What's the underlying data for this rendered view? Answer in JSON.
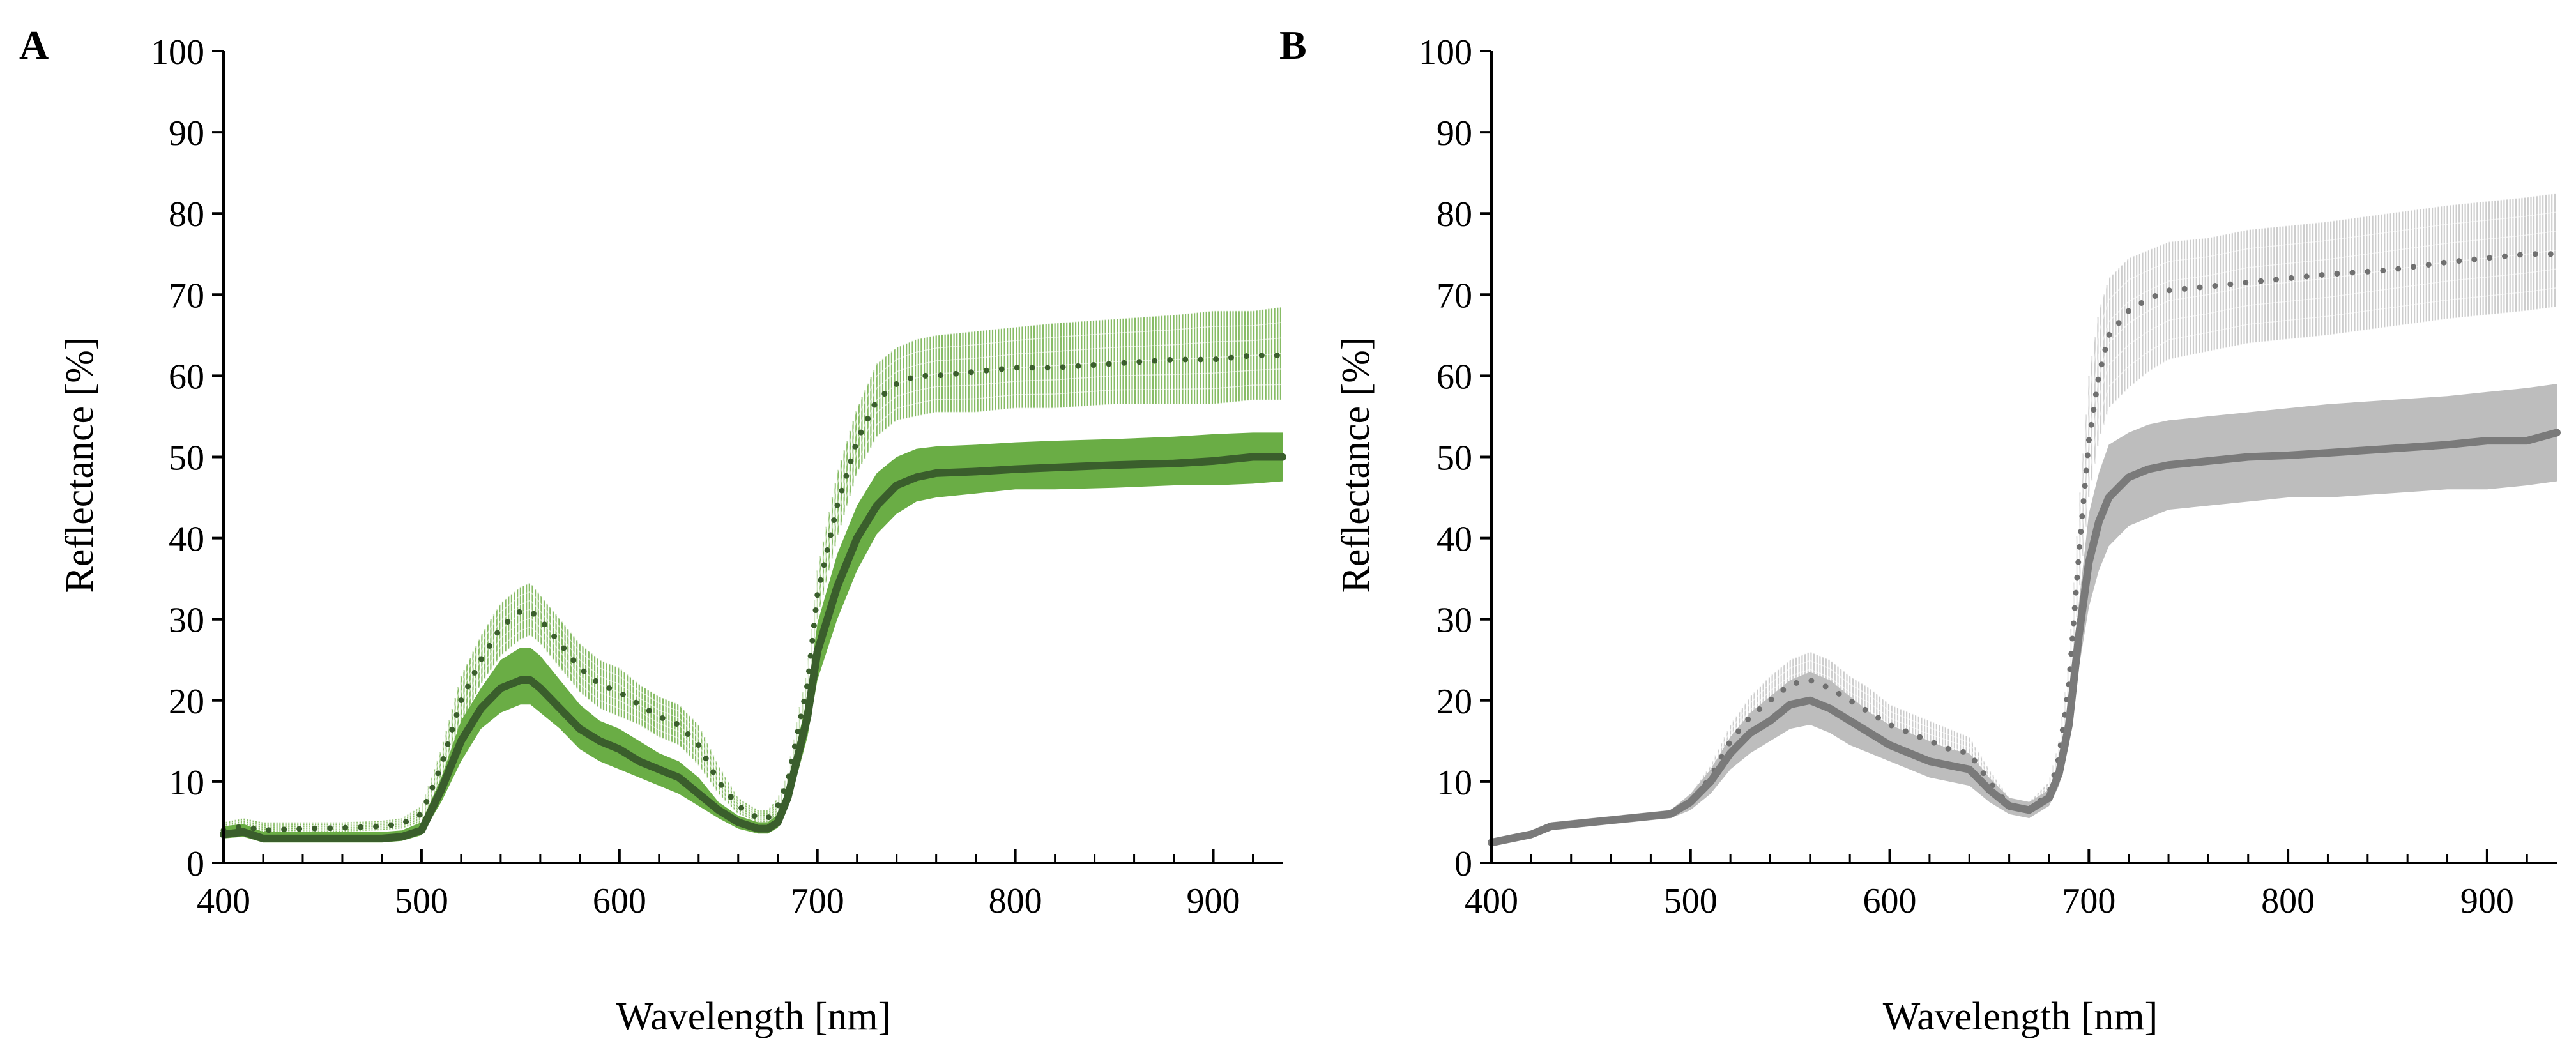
{
  "chart_data": [
    {
      "type": "line",
      "panel_label": "A",
      "xlabel": "Wavelength [nm]",
      "ylabel": "Reflectance [%]",
      "xlim": [
        400,
        935
      ],
      "ylim": [
        0,
        100
      ],
      "xticks": [
        400,
        500,
        600,
        700,
        800,
        900
      ],
      "yticks": [
        0,
        10,
        20,
        30,
        40,
        50,
        60,
        70,
        80,
        90,
        100
      ],
      "grid": false,
      "legend": "none",
      "series": [
        {
          "style": "dotted",
          "line_color": "#3a5e2c",
          "band_color": "#7ab554",
          "band_style": "fine-lines",
          "x": [
            400,
            410,
            420,
            440,
            460,
            480,
            490,
            500,
            510,
            520,
            530,
            540,
            550,
            555,
            560,
            570,
            580,
            590,
            600,
            610,
            620,
            630,
            640,
            650,
            660,
            670,
            675,
            680,
            685,
            690,
            695,
            700,
            710,
            720,
            730,
            740,
            750,
            760,
            780,
            800,
            820,
            850,
            880,
            900,
            920,
            935
          ],
          "mean": [
            4,
            4.5,
            4,
            4.2,
            4.3,
            4.5,
            4.8,
            6,
            12,
            20,
            25,
            29,
            31,
            31,
            30,
            27,
            24,
            22,
            21,
            19.5,
            18,
            17,
            14.5,
            10,
            7,
            5.5,
            5.5,
            7,
            10,
            16,
            22,
            33,
            44,
            52,
            57,
            59,
            60,
            60,
            60.5,
            61,
            61,
            61.5,
            62,
            62,
            62.5,
            62.5
          ],
          "lower": [
            3.5,
            3.8,
            3.5,
            3.7,
            3.8,
            4,
            4.2,
            5,
            10,
            17,
            22,
            25.5,
            27.5,
            28,
            27,
            24,
            21,
            19,
            18,
            17,
            15.5,
            14.5,
            12,
            8.5,
            6,
            5,
            5,
            6,
            9,
            14,
            20,
            30,
            40,
            48,
            52.5,
            54.5,
            55,
            55.5,
            55.5,
            56,
            56,
            56.5,
            56.5,
            56.5,
            57,
            57
          ],
          "upper": [
            5,
            5.5,
            5,
            5,
            5,
            5.2,
            5.5,
            7,
            14,
            23,
            28,
            32,
            34,
            34.5,
            33,
            30,
            27,
            25,
            24,
            22,
            20.5,
            19.5,
            17,
            12,
            8,
            6.5,
            6.5,
            8,
            11,
            18,
            24,
            36,
            48,
            56,
            61.5,
            63.5,
            64.5,
            65,
            65.5,
            66,
            66.5,
            67,
            67.5,
            68,
            68,
            68.5
          ]
        },
        {
          "style": "solid",
          "line_color": "#3a5e2c",
          "band_color": "#6aad45",
          "band_style": "filled",
          "x": [
            400,
            410,
            420,
            440,
            460,
            480,
            490,
            500,
            510,
            520,
            530,
            540,
            550,
            555,
            560,
            570,
            580,
            590,
            600,
            610,
            620,
            630,
            640,
            650,
            660,
            670,
            675,
            680,
            685,
            690,
            695,
            700,
            710,
            720,
            730,
            740,
            750,
            760,
            780,
            800,
            820,
            850,
            880,
            900,
            920,
            935
          ],
          "mean": [
            3.5,
            3.8,
            3,
            3,
            3,
            3,
            3.2,
            4,
            9,
            15,
            19,
            21.5,
            22.5,
            22.5,
            21.5,
            19,
            16.5,
            15,
            14,
            12.5,
            11.5,
            10.5,
            8.5,
            6.5,
            5,
            4.2,
            4.2,
            5,
            8,
            13,
            18,
            26,
            34,
            40,
            44,
            46.5,
            47.5,
            48,
            48.2,
            48.5,
            48.7,
            49,
            49.2,
            49.5,
            50,
            50
          ],
          "lower": [
            3,
            3.2,
            2.5,
            2.5,
            2.5,
            2.5,
            2.7,
            3.4,
            7.5,
            12.5,
            16.5,
            18.5,
            19.5,
            19.5,
            18.5,
            16.5,
            14,
            12.5,
            11.5,
            10.5,
            9.5,
            8.5,
            7,
            5.5,
            4.2,
            3.6,
            3.6,
            4.3,
            7,
            11,
            15.5,
            22.5,
            30,
            36,
            40.5,
            43,
            44.5,
            45,
            45.5,
            46,
            46,
            46.2,
            46.5,
            46.5,
            46.7,
            47
          ],
          "upper": [
            4.5,
            4.8,
            3.8,
            3.8,
            3.8,
            3.8,
            4,
            5,
            10.5,
            17.5,
            21.5,
            25,
            26.5,
            26.5,
            25.5,
            22.5,
            19.5,
            17.5,
            16.5,
            15,
            13.5,
            12.5,
            10.5,
            7.5,
            5.8,
            5,
            5,
            6,
            9.5,
            15,
            20.5,
            29.5,
            38,
            44,
            48,
            50,
            51,
            51.3,
            51.5,
            51.8,
            52,
            52.2,
            52.5,
            52.8,
            53,
            53
          ]
        }
      ]
    },
    {
      "type": "line",
      "panel_label": "B",
      "xlabel": "Wavelength [nm]",
      "ylabel": "Reflectance [%]",
      "xlim": [
        400,
        935
      ],
      "ylim": [
        0,
        100
      ],
      "xticks": [
        400,
        500,
        600,
        700,
        800,
        900
      ],
      "yticks": [
        0,
        10,
        20,
        30,
        40,
        50,
        60,
        70,
        80,
        90,
        100
      ],
      "grid": false,
      "legend": "none",
      "series": [
        {
          "style": "dotted",
          "line_color": "#707070",
          "band_color": "#c8c8c8",
          "band_style": "fine-lines",
          "x": [
            400,
            410,
            420,
            430,
            450,
            470,
            490,
            500,
            510,
            520,
            530,
            540,
            550,
            560,
            570,
            580,
            590,
            600,
            610,
            620,
            630,
            640,
            650,
            660,
            670,
            680,
            685,
            690,
            695,
            700,
            705,
            710,
            720,
            730,
            740,
            760,
            780,
            800,
            820,
            850,
            880,
            900,
            920,
            935
          ],
          "mean": [
            2.5,
            3,
            3.5,
            4.5,
            5,
            5.5,
            6,
            7.5,
            10.5,
            15,
            18,
            20,
            22,
            22.5,
            21.5,
            20,
            18.5,
            17,
            16,
            15,
            14,
            13.5,
            10,
            7,
            6.5,
            8.5,
            13,
            22,
            38,
            52,
            60,
            65,
            68,
            69.5,
            70.5,
            71,
            71.5,
            72,
            72.5,
            73,
            74,
            74.5,
            75,
            75
          ],
          "lower": [
            2,
            2.5,
            3,
            4,
            4.5,
            5,
            5.5,
            6.5,
            9,
            13,
            15.5,
            17.5,
            19,
            19.5,
            18.5,
            17,
            16,
            14.5,
            13.5,
            12.5,
            12,
            11.5,
            8.5,
            6,
            5.5,
            7.5,
            11.5,
            19.5,
            33,
            45,
            52,
            56,
            58.5,
            60.5,
            62,
            63,
            64,
            64.5,
            65,
            66,
            67,
            67.5,
            68,
            68.5
          ],
          "upper": [
            3,
            3.5,
            4,
            5,
            5.5,
            6,
            6.5,
            8.5,
            12,
            17,
            20.5,
            23,
            25,
            26,
            25,
            23,
            21.5,
            19.5,
            18.5,
            17.5,
            16.5,
            15.5,
            11.5,
            8,
            7.5,
            10,
            15,
            25,
            44,
            60,
            68,
            72,
            74.5,
            75.5,
            76.5,
            77,
            78,
            78.5,
            79,
            80,
            81,
            81.5,
            82,
            82.5
          ]
        },
        {
          "style": "solid",
          "line_color": "#7a7a7a",
          "band_color": "#bdbdbd",
          "band_style": "filled",
          "x": [
            400,
            410,
            420,
            430,
            450,
            470,
            490,
            500,
            510,
            520,
            530,
            540,
            550,
            560,
            570,
            580,
            590,
            600,
            610,
            620,
            630,
            640,
            650,
            660,
            670,
            680,
            685,
            690,
            695,
            700,
            705,
            710,
            720,
            730,
            740,
            760,
            780,
            800,
            820,
            850,
            880,
            900,
            920,
            935
          ],
          "mean": [
            2.5,
            3,
            3.5,
            4.5,
            5,
            5.5,
            6,
            7.5,
            10,
            13.5,
            16,
            17.5,
            19.5,
            20,
            19,
            17.5,
            16,
            14.5,
            13.5,
            12.5,
            12,
            11.5,
            9,
            7,
            6.5,
            8,
            11,
            17,
            28,
            37,
            42,
            45,
            47.5,
            48.5,
            49,
            49.5,
            50,
            50.2,
            50.5,
            51,
            51.5,
            52,
            52,
            53
          ],
          "lower": [
            2,
            2.5,
            3,
            4,
            4.5,
            5,
            5.5,
            6.5,
            8.5,
            11.5,
            13.5,
            15,
            16.5,
            17,
            16,
            14.5,
            13.5,
            12.5,
            11.5,
            10.5,
            10,
            9.5,
            7.5,
            6,
            5.5,
            7,
            9.5,
            14.5,
            24,
            31.5,
            36,
            39,
            41.5,
            42.5,
            43.5,
            44,
            44.5,
            45,
            45,
            45.5,
            46,
            46,
            46.5,
            47
          ],
          "upper": [
            3,
            3.5,
            4,
            5,
            5.5,
            6,
            6.5,
            8.5,
            11.5,
            15.5,
            18.5,
            20.5,
            22.5,
            23.5,
            22.5,
            20.5,
            18.5,
            17,
            16,
            15,
            14,
            13.5,
            10.5,
            8,
            7.5,
            9,
            12.5,
            20,
            32,
            43,
            48,
            51.5,
            53,
            54,
            54.5,
            55,
            55.5,
            56,
            56.5,
            57,
            57.5,
            58,
            58.5,
            59
          ]
        }
      ]
    }
  ]
}
